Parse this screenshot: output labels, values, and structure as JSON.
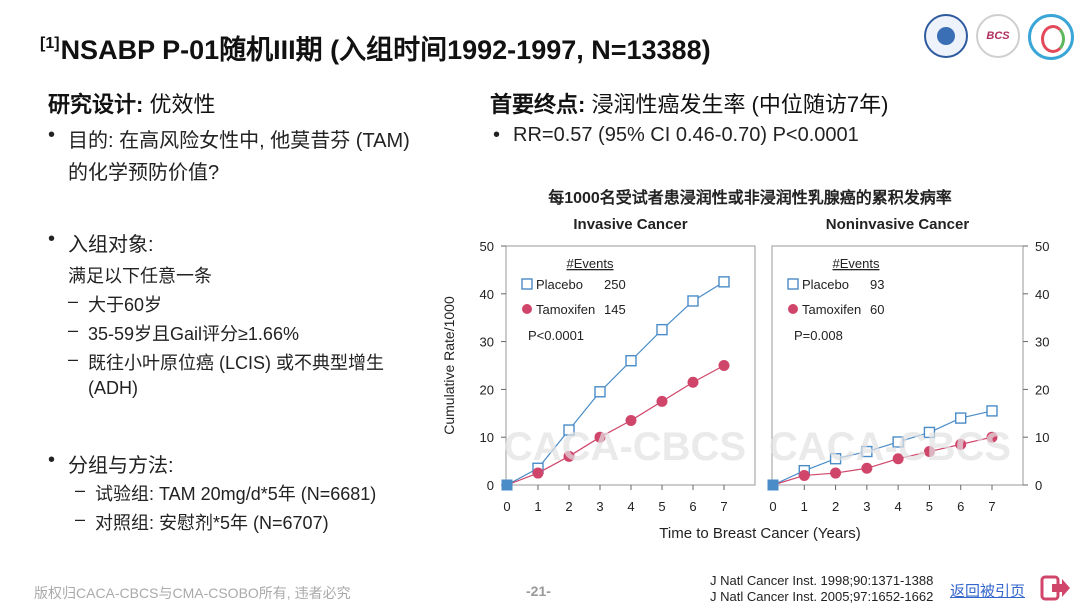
{
  "title": {
    "sup": "[1]",
    "text": "NSABP P-01随机III期 (入组时间1992-1997, N=13388)"
  },
  "left": {
    "design": {
      "label": "研究设计:",
      "value": " 优效性"
    },
    "purpose": [
      "目的: 在高风险女性中, 他莫昔芬 (TAM)",
      "的化学预防价值?"
    ],
    "enroll": {
      "label": "入组对象:",
      "intro": "满足以下任意一条",
      "items": [
        "大于60岁",
        "35-59岁且Gail评分≥1.66%",
        "既往小叶原位癌 (LCIS) 或不典型增生",
        "(ADH)"
      ]
    },
    "groups": {
      "label": "分组与方法:",
      "items": [
        "试验组: TAM 20mg/d*5年 (N=6681)",
        "对照组: 安慰剂*5年 (N=6707)"
      ]
    }
  },
  "right": {
    "endpoint": {
      "label": "首要终点:",
      "value": " 浸润性癌发生率 (中位随访7年)"
    },
    "rr": "RR=0.57 (95% CI 0.46-0.70) P<0.0001"
  },
  "chart_data": {
    "type": "line",
    "title": "每1000名受试者患浸润性或非浸润性乳腺癌的累积发病率",
    "xlabel": "Time to Breast Cancer (Years)",
    "ylabel": "Cumulative Rate/1000",
    "watermark": "CACA-CBCS",
    "ylim": [
      0,
      50
    ],
    "yticks": [
      0,
      10,
      20,
      30,
      40,
      50
    ],
    "xticks": [
      0,
      1,
      2,
      3,
      4,
      5,
      6,
      7
    ],
    "panels": [
      {
        "subtitle": "Invasive Cancer",
        "events_header": "#Events",
        "pvalue": "P<0.0001",
        "series": [
          {
            "name": "Placebo",
            "events": "250",
            "color": "#4a8cc8",
            "marker": "square",
            "x": [
              0,
              1,
              2,
              3,
              4,
              5,
              6,
              7
            ],
            "y": [
              0,
              3.5,
              11.5,
              19.5,
              26,
              32.5,
              38.5,
              42.5
            ]
          },
          {
            "name": "Tamoxifen",
            "events": "145",
            "color": "#d0456a",
            "marker": "circle",
            "x": [
              0,
              1,
              2,
              3,
              4,
              5,
              6,
              7
            ],
            "y": [
              0,
              2.5,
              6,
              10,
              13.5,
              17.5,
              21.5,
              25
            ]
          }
        ]
      },
      {
        "subtitle": "Noninvasive Cancer",
        "events_header": "#Events",
        "pvalue": "P=0.008",
        "series": [
          {
            "name": "Placebo",
            "events": "93",
            "color": "#4a8cc8",
            "marker": "square",
            "x": [
              0,
              1,
              2,
              3,
              4,
              5,
              6,
              7
            ],
            "y": [
              0,
              3,
              5.5,
              7,
              9,
              11,
              14,
              15.5
            ]
          },
          {
            "name": "Tamoxifen",
            "events": "60",
            "color": "#d0456a",
            "marker": "circle",
            "x": [
              0,
              1,
              2,
              3,
              4,
              5,
              6,
              7
            ],
            "y": [
              0,
              2,
              2.5,
              3.5,
              5.5,
              7,
              8.5,
              10
            ]
          }
        ]
      }
    ]
  },
  "footer": {
    "copyright": "版权归CACA-CBCS与CMA-CSOBO所有, 违者必究",
    "page": "-21-",
    "refs": [
      "J Natl Cancer Inst. 1998;90:1371-1388",
      "J Natl Cancer Inst. 2005;97:1652-1662"
    ],
    "back_link": "返回被引页"
  },
  "icons": {
    "back": "arrow-exit-icon"
  }
}
